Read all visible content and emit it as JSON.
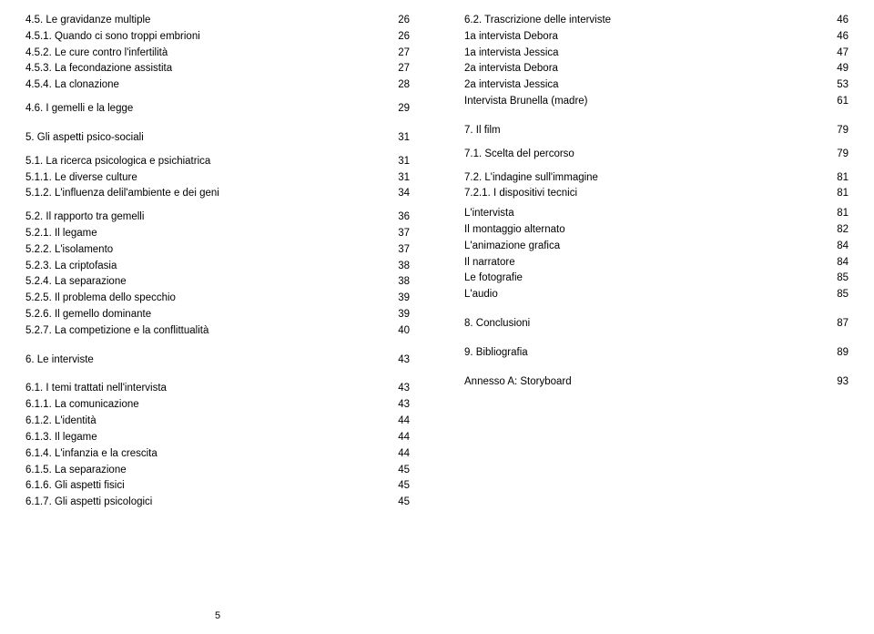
{
  "left": [
    {
      "label": "4.5. Le gravidanze multiple",
      "page": "26",
      "cls": "first"
    },
    {
      "label": "4.5.1. Quando ci sono troppi embrioni",
      "page": "26"
    },
    {
      "label": "4.5.2. Le cure contro l'infertilità",
      "page": "27"
    },
    {
      "label": "4.5.3. La fecondazione assistita",
      "page": "27"
    },
    {
      "label": "4.5.4. La clonazione",
      "page": "28"
    },
    {
      "label": "4.6. I gemelli e la legge",
      "page": "29",
      "cls": "sub-head"
    },
    {
      "label": "5. Gli aspetti psico-sociali",
      "page": "31",
      "cls": "section-head"
    },
    {
      "label": "5.1. La ricerca psicologica e psichiatrica",
      "page": "31",
      "cls": "sub-head"
    },
    {
      "label": "5.1.1. Le diverse culture",
      "page": "31"
    },
    {
      "label": "5.1.2. L'influenza delil'ambiente e dei geni",
      "page": "34"
    },
    {
      "label": "5.2. Il rapporto tra gemelli",
      "page": "36",
      "cls": "sub-head"
    },
    {
      "label": "5.2.1. Il legame",
      "page": "37"
    },
    {
      "label": "5.2.2. L'isolamento",
      "page": "37"
    },
    {
      "label": "5.2.3. La criptofasia",
      "page": "38"
    },
    {
      "label": "5.2.4. La separazione",
      "page": "38"
    },
    {
      "label": "5.2.5. Il problema dello specchio",
      "page": "39"
    },
    {
      "label": "5.2.6. Il gemello dominante",
      "page": "39"
    },
    {
      "label": "5.2.7. La competizione e la conflittualità",
      "page": "40"
    },
    {
      "label": "6. Le interviste",
      "page": "43",
      "cls": "section-head"
    },
    {
      "label": "6.1. I temi trattati nell'intervista",
      "page": "43",
      "cls": "section-head"
    },
    {
      "label": "6.1.1. La comunicazione",
      "page": "43"
    },
    {
      "label": "6.1.2. L'identità",
      "page": "44"
    },
    {
      "label": "6.1.3. Il legame",
      "page": "44"
    },
    {
      "label": "6.1.4. L'infanzia e la crescita",
      "page": "44"
    },
    {
      "label": "6.1.5. La separazione",
      "page": "45"
    },
    {
      "label": "6.1.6. Gli aspetti fisici",
      "page": "45"
    },
    {
      "label": "6.1.7. Gli aspetti psicologici",
      "page": "45"
    }
  ],
  "right": [
    {
      "label": "6.2. Trascrizione delle interviste",
      "page": "46",
      "cls": "first"
    },
    {
      "label": "1a intervista Debora",
      "page": "46"
    },
    {
      "label": "1a intervista Jessica",
      "page": "47"
    },
    {
      "label": "2a intervista Debora",
      "page": "49"
    },
    {
      "label": "2a intervista Jessica",
      "page": "53"
    },
    {
      "label": "Intervista Brunella (madre)",
      "page": "61"
    },
    {
      "label": "7. Il film",
      "page": "79",
      "cls": "section-head"
    },
    {
      "label": "7.1. Scelta del percorso",
      "page": "79",
      "cls": "sub-head"
    },
    {
      "label": "7.2. L'indagine sull'immagine",
      "page": "81",
      "cls": "sub-head"
    },
    {
      "label": "7.2.1. I dispositivi tecnici",
      "page": "81"
    },
    {
      "label": "L'intervista",
      "page": "81",
      "cls": "gap-small"
    },
    {
      "label": "Il montaggio alternato",
      "page": "82"
    },
    {
      "label": "L'animazione grafica",
      "page": "84"
    },
    {
      "label": "Il narratore",
      "page": "84"
    },
    {
      "label": "Le fotografie",
      "page": "85"
    },
    {
      "label": "L'audio",
      "page": "85"
    },
    {
      "label": "8. Conclusioni",
      "page": "87",
      "cls": "section-head"
    },
    {
      "label": "9. Bibliografia",
      "page": "89",
      "cls": "section-head"
    },
    {
      "label": "Annesso A: Storyboard",
      "page": "93",
      "cls": "section-head"
    }
  ],
  "footer_page": "5"
}
